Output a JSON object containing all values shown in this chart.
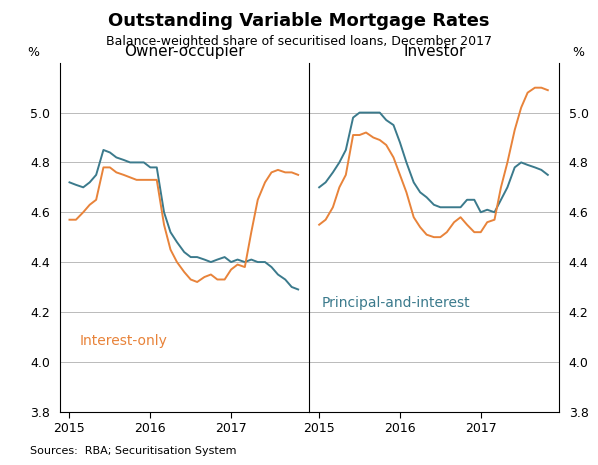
{
  "title": "Outstanding Variable Mortgage Rates",
  "subtitle": "Balance-weighted share of securitised loans, December 2017",
  "source": "Sources:  RBA; Securitisation System",
  "ylim": [
    3.8,
    5.2
  ],
  "yticks": [
    3.8,
    4.0,
    4.2,
    4.4,
    4.6,
    4.8,
    5.0
  ],
  "ytick_labels": [
    "3.8",
    "4.0",
    "4.2",
    "4.4",
    "4.6",
    "4.8",
    "5.0"
  ],
  "ylabel": "%",
  "ylabel_right": "%",
  "panel1_title": "Owner-occupier",
  "panel2_title": "Investor",
  "label_io": "Interest-only",
  "label_pai": "Principal-and-interest",
  "color_io": "#E8833A",
  "color_pai": "#3B7A8C",
  "owner_pai_x": [
    2015.0,
    2015.08,
    2015.17,
    2015.25,
    2015.33,
    2015.42,
    2015.5,
    2015.58,
    2015.67,
    2015.75,
    2015.83,
    2015.92,
    2016.0,
    2016.08,
    2016.17,
    2016.25,
    2016.33,
    2016.42,
    2016.5,
    2016.58,
    2016.67,
    2016.75,
    2016.83,
    2016.92,
    2017.0,
    2017.08,
    2017.17,
    2017.25,
    2017.33,
    2017.42,
    2017.5,
    2017.58,
    2017.67,
    2017.75,
    2017.83
  ],
  "owner_pai_y": [
    4.72,
    4.71,
    4.7,
    4.72,
    4.75,
    4.85,
    4.84,
    4.82,
    4.81,
    4.8,
    4.8,
    4.8,
    4.78,
    4.78,
    4.6,
    4.52,
    4.48,
    4.44,
    4.42,
    4.42,
    4.41,
    4.4,
    4.41,
    4.42,
    4.4,
    4.41,
    4.4,
    4.41,
    4.4,
    4.4,
    4.38,
    4.35,
    4.33,
    4.3,
    4.29
  ],
  "owner_io_x": [
    2015.0,
    2015.08,
    2015.17,
    2015.25,
    2015.33,
    2015.42,
    2015.5,
    2015.58,
    2015.67,
    2015.75,
    2015.83,
    2015.92,
    2016.0,
    2016.08,
    2016.17,
    2016.25,
    2016.33,
    2016.42,
    2016.5,
    2016.58,
    2016.67,
    2016.75,
    2016.83,
    2016.92,
    2017.0,
    2017.08,
    2017.17,
    2017.25,
    2017.33,
    2017.42,
    2017.5,
    2017.58,
    2017.67,
    2017.75,
    2017.83
  ],
  "owner_io_y": [
    4.57,
    4.57,
    4.6,
    4.63,
    4.65,
    4.78,
    4.78,
    4.76,
    4.75,
    4.74,
    4.73,
    4.73,
    4.73,
    4.73,
    4.55,
    4.45,
    4.4,
    4.36,
    4.33,
    4.32,
    4.34,
    4.35,
    4.33,
    4.33,
    4.37,
    4.39,
    4.38,
    4.52,
    4.65,
    4.72,
    4.76,
    4.77,
    4.76,
    4.76,
    4.75
  ],
  "investor_pai_x": [
    2015.0,
    2015.08,
    2015.17,
    2015.25,
    2015.33,
    2015.42,
    2015.5,
    2015.58,
    2015.67,
    2015.75,
    2015.83,
    2015.92,
    2016.0,
    2016.08,
    2016.17,
    2016.25,
    2016.33,
    2016.42,
    2016.5,
    2016.58,
    2016.67,
    2016.75,
    2016.83,
    2016.92,
    2017.0,
    2017.08,
    2017.17,
    2017.25,
    2017.33,
    2017.42,
    2017.5,
    2017.58,
    2017.67,
    2017.75,
    2017.83
  ],
  "investor_pai_y": [
    4.7,
    4.72,
    4.76,
    4.8,
    4.85,
    4.98,
    5.0,
    5.0,
    5.0,
    5.0,
    4.97,
    4.95,
    4.88,
    4.8,
    4.72,
    4.68,
    4.66,
    4.63,
    4.62,
    4.62,
    4.62,
    4.62,
    4.65,
    4.65,
    4.6,
    4.61,
    4.6,
    4.65,
    4.7,
    4.78,
    4.8,
    4.79,
    4.78,
    4.77,
    4.75
  ],
  "investor_io_x": [
    2015.0,
    2015.08,
    2015.17,
    2015.25,
    2015.33,
    2015.42,
    2015.5,
    2015.58,
    2015.67,
    2015.75,
    2015.83,
    2015.92,
    2016.0,
    2016.08,
    2016.17,
    2016.25,
    2016.33,
    2016.42,
    2016.5,
    2016.58,
    2016.67,
    2016.75,
    2016.83,
    2016.92,
    2017.0,
    2017.08,
    2017.17,
    2017.25,
    2017.33,
    2017.42,
    2017.5,
    2017.58,
    2017.67,
    2017.75,
    2017.83
  ],
  "investor_io_y": [
    4.55,
    4.57,
    4.62,
    4.7,
    4.75,
    4.91,
    4.91,
    4.92,
    4.9,
    4.89,
    4.87,
    4.82,
    4.75,
    4.68,
    4.58,
    4.54,
    4.51,
    4.5,
    4.5,
    4.52,
    4.56,
    4.58,
    4.55,
    4.52,
    4.52,
    4.56,
    4.57,
    4.7,
    4.8,
    4.93,
    5.02,
    5.08,
    5.1,
    5.1,
    5.09
  ],
  "xlim": [
    2014.88,
    2017.97
  ],
  "xticks": [
    2015,
    2016,
    2017
  ],
  "xticklabels": [
    "2015",
    "2016",
    "2017"
  ],
  "background_color": "#ffffff",
  "grid_color": "#b0b0b0",
  "font_color": "#000000",
  "title_fontsize": 13,
  "subtitle_fontsize": 9,
  "panel_title_fontsize": 11,
  "tick_fontsize": 9,
  "label_fontsize": 10,
  "source_fontsize": 8,
  "linewidth": 1.4
}
